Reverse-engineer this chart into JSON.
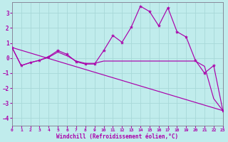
{
  "background_color": "#c0ecec",
  "grid_color": "#a8d8d8",
  "line_color": "#aa00aa",
  "xlim": [
    0,
    23
  ],
  "ylim": [
    -4.5,
    3.7
  ],
  "yticks": [
    -4,
    -3,
    -2,
    -1,
    0,
    1,
    2,
    3
  ],
  "xticks": [
    0,
    1,
    2,
    3,
    4,
    5,
    6,
    7,
    8,
    9,
    10,
    11,
    12,
    13,
    14,
    15,
    16,
    17,
    18,
    19,
    20,
    21,
    22,
    23
  ],
  "xlabel": "Windchill (Refroidissement éolien,°C)",
  "line1_x": [
    0,
    1,
    2,
    3,
    4,
    5,
    6,
    7,
    8,
    9,
    10,
    11,
    12,
    13,
    14,
    15,
    16,
    17,
    18,
    19,
    20,
    21,
    22,
    23
  ],
  "line1_y": [
    0.7,
    -0.5,
    -0.3,
    -0.15,
    0.1,
    0.5,
    0.25,
    -0.25,
    -0.4,
    -0.4,
    0.5,
    1.5,
    1.05,
    2.05,
    3.45,
    3.1,
    2.15,
    3.35,
    1.75,
    1.4,
    -0.15,
    -1.0,
    -0.5,
    -3.5
  ],
  "line2_x": [
    0,
    1,
    2,
    3,
    4,
    5,
    6,
    7,
    8,
    9,
    10,
    11,
    12,
    13,
    14,
    15,
    16,
    17,
    18,
    19,
    20,
    21,
    22,
    23
  ],
  "line2_y": [
    0.7,
    -0.5,
    -0.3,
    -0.15,
    0.05,
    0.4,
    0.15,
    -0.2,
    -0.35,
    -0.35,
    -0.2,
    -0.2,
    -0.2,
    -0.2,
    -0.2,
    -0.2,
    -0.2,
    -0.2,
    -0.2,
    -0.2,
    -0.2,
    -0.55,
    -2.7,
    -3.5
  ],
  "line3_x": [
    0,
    23
  ],
  "line3_y": [
    0.7,
    -3.5
  ]
}
